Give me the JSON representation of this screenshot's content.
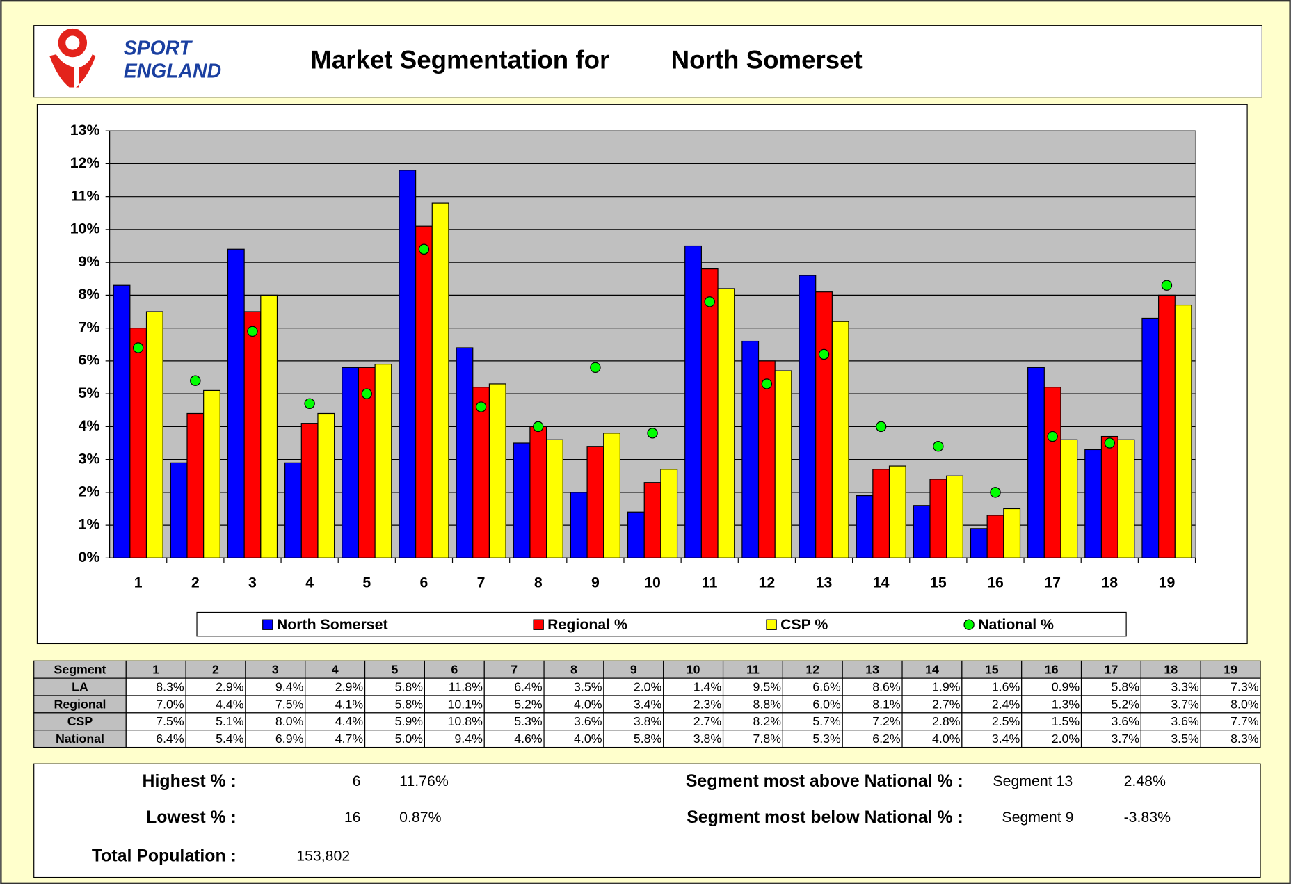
{
  "header": {
    "logo_top": "SPORT",
    "logo_bottom": "ENGLAND",
    "title": "Market Segmentation for",
    "area": "North Somerset"
  },
  "chart_data": {
    "type": "bar",
    "categories": [
      "1",
      "2",
      "3",
      "4",
      "5",
      "6",
      "7",
      "8",
      "9",
      "10",
      "11",
      "12",
      "13",
      "14",
      "15",
      "16",
      "17",
      "18",
      "19"
    ],
    "ylim": [
      0,
      13
    ],
    "yticks": [
      {
        "value": 0,
        "label": "0%"
      },
      {
        "value": 1,
        "label": "1%"
      },
      {
        "value": 2,
        "label": "2%"
      },
      {
        "value": 3,
        "label": "3%"
      },
      {
        "value": 4,
        "label": "4%"
      },
      {
        "value": 5,
        "label": "5%"
      },
      {
        "value": 6,
        "label": "6%"
      },
      {
        "value": 7,
        "label": "7%"
      },
      {
        "value": 8,
        "label": "8%"
      },
      {
        "value": 9,
        "label": "9%"
      },
      {
        "value": 10,
        "label": "10%"
      },
      {
        "value": 11,
        "label": "11%"
      },
      {
        "value": 12,
        "label": "12%"
      },
      {
        "value": 13,
        "label": "13%"
      }
    ],
    "grid": true,
    "series": [
      {
        "name": "North Somerset",
        "table_label": "LA",
        "color": "#0000ff",
        "mark": "bar",
        "values": [
          8.3,
          2.9,
          9.4,
          2.9,
          5.8,
          11.8,
          6.4,
          3.5,
          2.0,
          1.4,
          9.5,
          6.6,
          8.6,
          1.9,
          1.6,
          0.9,
          5.8,
          3.3,
          7.3
        ],
        "value_labels": [
          "8.3%",
          "2.9%",
          "9.4%",
          "2.9%",
          "5.8%",
          "11.8%",
          "6.4%",
          "3.5%",
          "2.0%",
          "1.4%",
          "9.5%",
          "6.6%",
          "8.6%",
          "1.9%",
          "1.6%",
          "0.9%",
          "5.8%",
          "3.3%",
          "7.3%"
        ]
      },
      {
        "name": "Regional %",
        "table_label": "Regional",
        "color": "#ff0000",
        "mark": "bar",
        "values": [
          7.0,
          4.4,
          7.5,
          4.1,
          5.8,
          10.1,
          5.2,
          4.0,
          3.4,
          2.3,
          8.8,
          6.0,
          8.1,
          2.7,
          2.4,
          1.3,
          5.2,
          3.7,
          8.0
        ],
        "value_labels": [
          "7.0%",
          "4.4%",
          "7.5%",
          "4.1%",
          "5.8%",
          "10.1%",
          "5.2%",
          "4.0%",
          "3.4%",
          "2.3%",
          "8.8%",
          "6.0%",
          "8.1%",
          "2.7%",
          "2.4%",
          "1.3%",
          "5.2%",
          "3.7%",
          "8.0%"
        ]
      },
      {
        "name": "CSP %",
        "table_label": "CSP",
        "color": "#ffff00",
        "mark": "bar",
        "values": [
          7.5,
          5.1,
          8.0,
          4.4,
          5.9,
          10.8,
          5.3,
          3.6,
          3.8,
          2.7,
          8.2,
          5.7,
          7.2,
          2.8,
          2.5,
          1.5,
          3.6,
          3.6,
          7.7
        ],
        "value_labels": [
          "7.5%",
          "5.1%",
          "8.0%",
          "4.4%",
          "5.9%",
          "10.8%",
          "5.3%",
          "3.6%",
          "3.8%",
          "2.7%",
          "8.2%",
          "5.7%",
          "7.2%",
          "2.8%",
          "2.5%",
          "1.5%",
          "3.6%",
          "3.6%",
          "7.7%"
        ]
      },
      {
        "name": "National %",
        "table_label": "National",
        "color": "#00ff00",
        "mark": "dot",
        "values": [
          6.4,
          5.4,
          6.9,
          4.7,
          5.0,
          9.4,
          4.6,
          4.0,
          5.8,
          3.8,
          7.8,
          5.3,
          6.2,
          4.0,
          3.4,
          2.0,
          3.7,
          3.5,
          8.3
        ],
        "value_labels": [
          "6.4%",
          "5.4%",
          "6.9%",
          "4.7%",
          "5.0%",
          "9.4%",
          "4.6%",
          "4.0%",
          "5.8%",
          "3.8%",
          "7.8%",
          "5.3%",
          "6.2%",
          "4.0%",
          "3.4%",
          "2.0%",
          "3.7%",
          "3.5%",
          "8.3%"
        ]
      }
    ]
  },
  "table": {
    "header": "Segment"
  },
  "summary": {
    "highest_label": "Highest % :",
    "highest_segment": "6",
    "highest_value": "11.76%",
    "lowest_label": "Lowest % :",
    "lowest_segment": "16",
    "lowest_value": "0.87%",
    "population_label": "Total Population :",
    "population_value": "153,802",
    "above_label": "Segment most above National % :",
    "above_segment": "Segment 13",
    "above_value": "2.48%",
    "below_label": "Segment most below National % :",
    "below_segment": "Segment 9",
    "below_value": "-3.83%"
  }
}
